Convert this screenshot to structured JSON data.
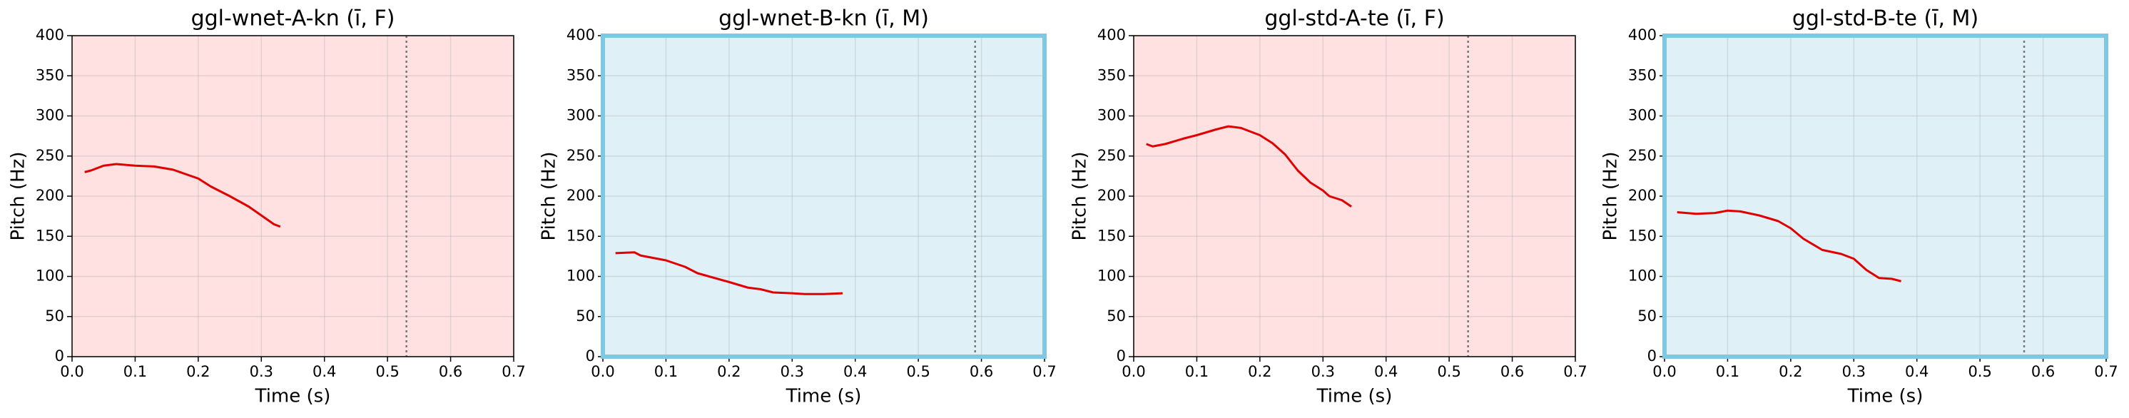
{
  "chart_data": [
    {
      "type": "line",
      "title": "ggl-wnet-A-kn (ī, F)",
      "x_label": "Time (s)",
      "y_label": "Pitch (Hz)",
      "x": [
        0.02,
        0.03,
        0.05,
        0.07,
        0.1,
        0.13,
        0.16,
        0.2,
        0.22,
        0.25,
        0.28,
        0.3,
        0.32,
        0.33
      ],
      "values": [
        230,
        232,
        238,
        240,
        238,
        237,
        233,
        222,
        212,
        200,
        187,
        176,
        165,
        162
      ],
      "color": "#e00000",
      "vline": 0.53,
      "background": "#ffe1e1",
      "border": "none",
      "xlim": [
        0,
        0.7
      ],
      "ylim": [
        0,
        400
      ],
      "xticks": [
        {
          "value": 0,
          "label": "0.0"
        },
        0.1,
        0.2,
        0.3,
        0.4,
        0.5,
        0.6,
        0.7
      ],
      "yticks": [
        0,
        50,
        100,
        150,
        200,
        250,
        300,
        350,
        400
      ],
      "grid": true
    },
    {
      "type": "line",
      "title": "ggl-wnet-B-kn (ī, M)",
      "x_label": "Time (s)",
      "y_label": "Pitch (Hz)",
      "x": [
        0.02,
        0.05,
        0.06,
        0.1,
        0.13,
        0.15,
        0.2,
        0.23,
        0.25,
        0.27,
        0.3,
        0.32,
        0.35,
        0.38
      ],
      "values": [
        129,
        130,
        126,
        120,
        112,
        104,
        93,
        86,
        84,
        80,
        79,
        78,
        78,
        79
      ],
      "color": "#e00000",
      "vline": 0.59,
      "background": "#dff0f7",
      "border": "#7ec8e3",
      "xlim": [
        0,
        0.7
      ],
      "ylim": [
        0,
        400
      ],
      "xticks": [
        {
          "value": 0,
          "label": "0.0"
        },
        0.1,
        0.2,
        0.3,
        0.4,
        0.5,
        0.6,
        0.7
      ],
      "yticks": [
        0,
        50,
        100,
        150,
        200,
        250,
        300,
        350,
        400
      ],
      "grid": true
    },
    {
      "type": "line",
      "title": "ggl-std-A-te (ī, F)",
      "x_label": "Time (s)",
      "y_label": "Pitch (Hz)",
      "x": [
        0.02,
        0.03,
        0.05,
        0.08,
        0.1,
        0.13,
        0.15,
        0.17,
        0.2,
        0.22,
        0.24,
        0.26,
        0.28,
        0.3,
        0.31,
        0.33,
        0.345
      ],
      "values": [
        265,
        262,
        265,
        272,
        276,
        283,
        287,
        285,
        276,
        266,
        252,
        232,
        217,
        207,
        200,
        195,
        187
      ],
      "color": "#e00000",
      "vline": 0.53,
      "background": "#ffe1e1",
      "border": "none",
      "xlim": [
        0,
        0.7
      ],
      "ylim": [
        0,
        400
      ],
      "xticks": [
        {
          "value": 0,
          "label": "0.0"
        },
        0.1,
        0.2,
        0.3,
        0.4,
        0.5,
        0.6,
        0.7
      ],
      "yticks": [
        0,
        50,
        100,
        150,
        200,
        250,
        300,
        350,
        400
      ],
      "grid": true
    },
    {
      "type": "line",
      "title": "ggl-std-B-te (ī, M)",
      "x_label": "Time (s)",
      "y_label": "Pitch (Hz)",
      "x": [
        0.02,
        0.05,
        0.08,
        0.1,
        0.12,
        0.15,
        0.18,
        0.2,
        0.22,
        0.25,
        0.28,
        0.3,
        0.32,
        0.34,
        0.36,
        0.375
      ],
      "values": [
        180,
        178,
        179,
        182,
        181,
        176,
        169,
        160,
        147,
        133,
        128,
        122,
        108,
        98,
        97,
        94
      ],
      "color": "#e00000",
      "vline": 0.57,
      "background": "#dff0f7",
      "border": "#7ec8e3",
      "xlim": [
        0,
        0.7
      ],
      "ylim": [
        0,
        400
      ],
      "xticks": [
        {
          "value": 0,
          "label": "0.0"
        },
        0.1,
        0.2,
        0.3,
        0.4,
        0.5,
        0.6,
        0.7
      ],
      "yticks": [
        0,
        50,
        100,
        150,
        200,
        250,
        300,
        350,
        400
      ],
      "grid": true
    }
  ]
}
